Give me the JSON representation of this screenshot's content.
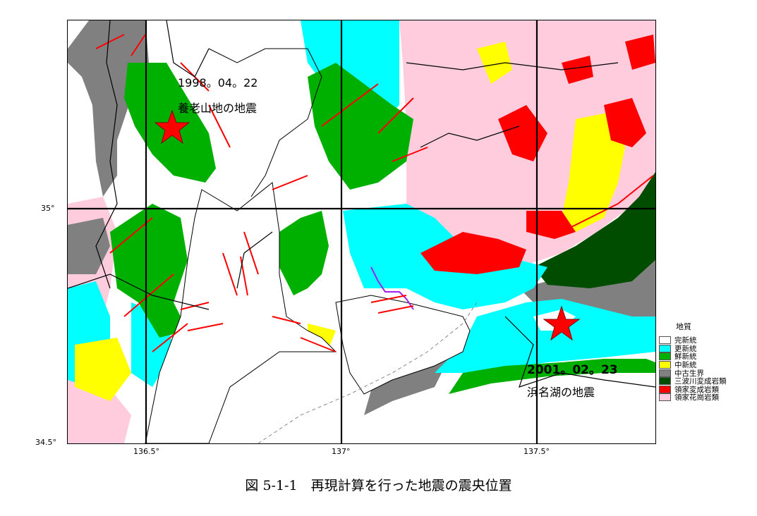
{
  "map": {
    "x_ticks": [
      "136.5°",
      "137°",
      "137.5°"
    ],
    "y_ticks": [
      "35°",
      "34.5°"
    ],
    "legend": {
      "title": "地質",
      "items": [
        {
          "label": "完新統",
          "color": "#ffffff"
        },
        {
          "label": "更新統",
          "color": "#00ffff"
        },
        {
          "label": "鮮新統",
          "color": "#00b000"
        },
        {
          "label": "中新統",
          "color": "#ffff00"
        },
        {
          "label": "中古生界",
          "color": "#808080"
        },
        {
          "label": "三波川変成岩類",
          "color": "#004d00"
        },
        {
          "label": "領家変成岩類",
          "color": "#ff0000"
        },
        {
          "label": "領家花崗岩類",
          "color": "#ffccdd"
        }
      ]
    },
    "epicenters": [
      {
        "date": "1998。04。22",
        "name": "養老山地の地震",
        "marker": "star-icon",
        "color": "#ff0000"
      },
      {
        "date": "2001。02。23",
        "name": "浜名湖の地震",
        "marker": "star-icon",
        "color": "#ff0000"
      }
    ]
  },
  "caption": "図 5-1-1　再現計算を行った地震の震央位置"
}
